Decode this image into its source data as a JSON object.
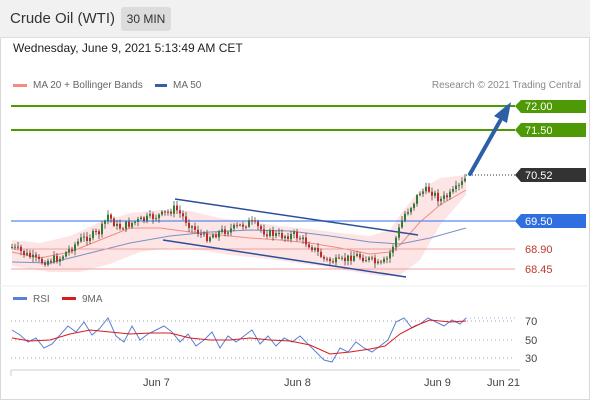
{
  "header": {
    "title": "Crude Oil (WTI)",
    "timeframe": "30 MIN"
  },
  "datetime": "Wednesday, June 9, 2021 5:13:49 AM CET",
  "legend": {
    "items": [
      {
        "label": "MA 20 + Bollinger Bands",
        "color": "#f28b82"
      },
      {
        "label": "MA 50",
        "color": "#3a5da8"
      }
    ],
    "credit": "Research © 2021 Trading Central"
  },
  "levels": {
    "resistance2": "72.00",
    "resistance1": "71.50",
    "last": "70.52",
    "pivot": "69.50",
    "support1": "68.90",
    "support2": "68.45"
  },
  "colors": {
    "resistance": "#4e9a06",
    "last": "#333333",
    "pivot": "#2f6fe0",
    "support": "#c0392b",
    "channel": "#2d4e9a",
    "arrow": "#2d5fa8",
    "bollinger_fill": "#fde0e0",
    "rsi": "#5b7fd6",
    "rsi_ma": "#d81b1b"
  },
  "rsi_legend": {
    "items": [
      {
        "label": "RSI",
        "color": "#5b7fd6"
      },
      {
        "label": "9MA",
        "color": "#d81b1b"
      }
    ]
  },
  "rsi_axis": [
    "70",
    "50",
    "30"
  ],
  "x_axis": [
    "Jun 7",
    "Jun 8",
    "Jun 9",
    "Jun 21"
  ]
}
